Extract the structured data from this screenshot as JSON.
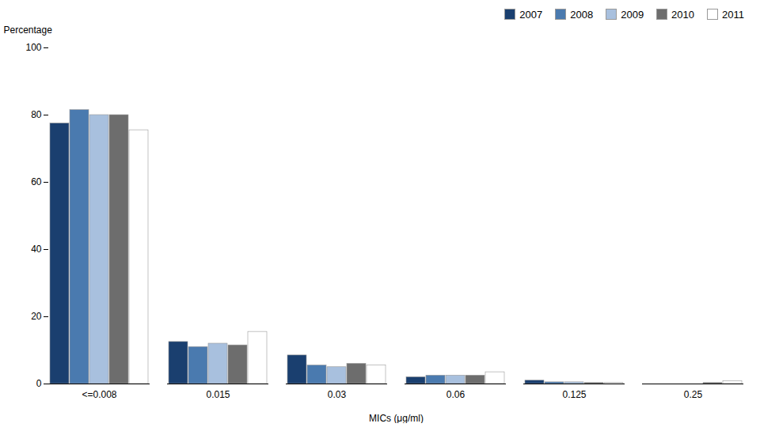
{
  "chart_data": {
    "type": "bar",
    "categories": [
      "<=0.008",
      "0.015",
      "0.03",
      "0.06",
      "0.125",
      "0.25"
    ],
    "series": [
      {
        "name": "2007",
        "color": "#1a3f6f",
        "values": [
          77.5,
          12.5,
          8.5,
          2.0,
          1.0,
          0.0
        ]
      },
      {
        "name": "2008",
        "color": "#4a7aaf",
        "values": [
          81.5,
          11.0,
          5.5,
          2.5,
          0.5,
          0.0
        ]
      },
      {
        "name": "2009",
        "color": "#a8c0de",
        "values": [
          80.0,
          12.0,
          5.0,
          2.5,
          0.5,
          0.0
        ]
      },
      {
        "name": "2010",
        "color": "#6d6d6d",
        "values": [
          80.0,
          11.5,
          6.0,
          2.5,
          0.3,
          0.3
        ]
      },
      {
        "name": "2011",
        "color": "#ffffff",
        "values": [
          75.5,
          15.5,
          5.5,
          3.5,
          0.3,
          0.8
        ]
      }
    ],
    "xlabel": "MICs (μg/ml)",
    "ylabel": "Percentage",
    "ylim": [
      0,
      100
    ],
    "yticks": [
      0,
      20,
      40,
      60,
      80,
      100
    ],
    "grid": false,
    "legend": "upper right"
  }
}
